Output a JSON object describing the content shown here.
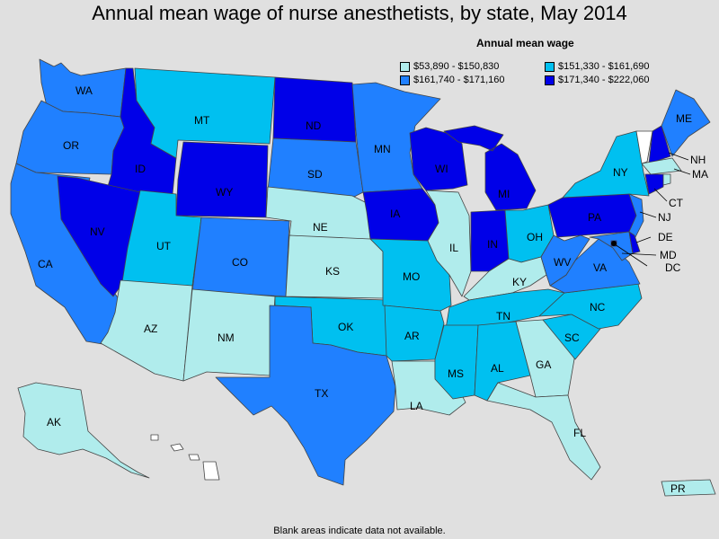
{
  "title": "Annual mean wage of nurse anesthetists, by state, May 2014",
  "legend": {
    "title": "Annual mean wage",
    "items": [
      {
        "label": "$53,890 - $150,830",
        "color": "#b0ecec"
      },
      {
        "label": "$151,330 - $161,690",
        "color": "#00c0f0"
      },
      {
        "label": "$161,740 - $171,160",
        "color": "#2080ff"
      },
      {
        "label": "$171,340 - $222,060",
        "color": "#0000e8"
      }
    ]
  },
  "footnote": "Blank areas indicate data not available.",
  "blank_color": "#ffffff",
  "states": [
    {
      "abbr": "WA",
      "cls": 2
    },
    {
      "abbr": "OR",
      "cls": 2
    },
    {
      "abbr": "CA",
      "cls": 2
    },
    {
      "abbr": "ID",
      "cls": 3
    },
    {
      "abbr": "NV",
      "cls": 3
    },
    {
      "abbr": "MT",
      "cls": 1
    },
    {
      "abbr": "WY",
      "cls": 3
    },
    {
      "abbr": "UT",
      "cls": 1
    },
    {
      "abbr": "AZ",
      "cls": 0
    },
    {
      "abbr": "CO",
      "cls": 2
    },
    {
      "abbr": "NM",
      "cls": 0
    },
    {
      "abbr": "ND",
      "cls": 3
    },
    {
      "abbr": "SD",
      "cls": 2
    },
    {
      "abbr": "NE",
      "cls": 0
    },
    {
      "abbr": "KS",
      "cls": 0
    },
    {
      "abbr": "OK",
      "cls": 1
    },
    {
      "abbr": "TX",
      "cls": 2
    },
    {
      "abbr": "MN",
      "cls": 2
    },
    {
      "abbr": "IA",
      "cls": 3
    },
    {
      "abbr": "MO",
      "cls": 1
    },
    {
      "abbr": "AR",
      "cls": 1
    },
    {
      "abbr": "LA",
      "cls": 0
    },
    {
      "abbr": "WI",
      "cls": 3
    },
    {
      "abbr": "IL",
      "cls": 0
    },
    {
      "abbr": "MI",
      "cls": 3
    },
    {
      "abbr": "IN",
      "cls": 3
    },
    {
      "abbr": "OH",
      "cls": 1
    },
    {
      "abbr": "KY",
      "cls": 0
    },
    {
      "abbr": "TN",
      "cls": 1
    },
    {
      "abbr": "MS",
      "cls": 1
    },
    {
      "abbr": "AL",
      "cls": 1
    },
    {
      "abbr": "GA",
      "cls": 0
    },
    {
      "abbr": "FL",
      "cls": 0
    },
    {
      "abbr": "SC",
      "cls": 1
    },
    {
      "abbr": "NC",
      "cls": 1
    },
    {
      "abbr": "VA",
      "cls": 2
    },
    {
      "abbr": "WV",
      "cls": 2
    },
    {
      "abbr": "PA",
      "cls": 3
    },
    {
      "abbr": "NY",
      "cls": 1
    },
    {
      "abbr": "VT",
      "cls": -1
    },
    {
      "abbr": "NH",
      "cls": 3
    },
    {
      "abbr": "ME",
      "cls": 2
    },
    {
      "abbr": "MA",
      "cls": 0
    },
    {
      "abbr": "CT",
      "cls": 3
    },
    {
      "abbr": "RI",
      "cls": 0
    },
    {
      "abbr": "NJ",
      "cls": 2
    },
    {
      "abbr": "DE",
      "cls": 3
    },
    {
      "abbr": "MD",
      "cls": 2
    },
    {
      "abbr": "DC",
      "cls": 3
    },
    {
      "abbr": "AK",
      "cls": 0
    },
    {
      "abbr": "HI",
      "cls": -1
    },
    {
      "abbr": "PR",
      "cls": 0
    }
  ],
  "labels": {
    "WA": "WA",
    "OR": "OR",
    "CA": "CA",
    "ID": "ID",
    "NV": "NV",
    "MT": "MT",
    "WY": "WY",
    "UT": "UT",
    "AZ": "AZ",
    "CO": "CO",
    "NM": "NM",
    "ND": "ND",
    "SD": "SD",
    "NE": "NE",
    "KS": "KS",
    "OK": "OK",
    "TX": "TX",
    "MN": "MN",
    "IA": "IA",
    "MO": "MO",
    "AR": "AR",
    "LA": "LA",
    "WI": "WI",
    "IL": "IL",
    "MI": "MI",
    "IN": "IN",
    "OH": "OH",
    "KY": "KY",
    "TN": "TN",
    "MS": "MS",
    "AL": "AL",
    "GA": "GA",
    "FL": "FL",
    "SC": "SC",
    "NC": "NC",
    "VA": "VA",
    "WV": "WV",
    "PA": "PA",
    "NY": "NY",
    "NH": "NH",
    "ME": "ME",
    "MA": "MA",
    "CT": "CT",
    "NJ": "NJ",
    "DE": "DE",
    "MD": "MD",
    "DC": "DC",
    "AK": "AK",
    "PR": "PR"
  }
}
